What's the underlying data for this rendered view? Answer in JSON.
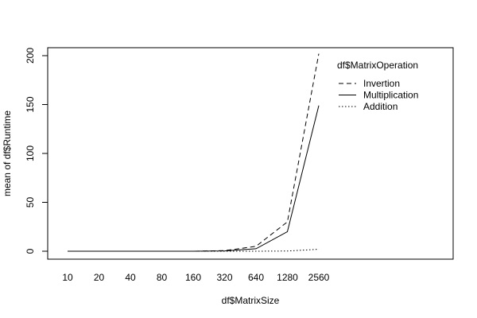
{
  "chart_data": {
    "type": "line",
    "title": "",
    "xlabel": "df$MatrixSize",
    "ylabel": "mean of  df$Runtime",
    "categories": [
      "10",
      "20",
      "40",
      "80",
      "160",
      "320",
      "640",
      "1280",
      "2560"
    ],
    "ylim": [
      0,
      200
    ],
    "y_ticks": [
      0,
      50,
      100,
      150,
      200
    ],
    "legend": {
      "title": "df$MatrixOperation",
      "position": "top-right"
    },
    "series": [
      {
        "name": "Invertion",
        "line_style": "dashed",
        "values": [
          0,
          0,
          0,
          0,
          0,
          0.6,
          5,
          30,
          202
        ]
      },
      {
        "name": "Multiplication",
        "line_style": "solid",
        "values": [
          0,
          0,
          0,
          0,
          0,
          0.3,
          2.5,
          20,
          149
        ]
      },
      {
        "name": "Addition",
        "line_style": "dotted",
        "values": [
          0,
          0,
          0,
          0,
          0,
          0,
          0,
          0.2,
          2
        ]
      }
    ]
  }
}
